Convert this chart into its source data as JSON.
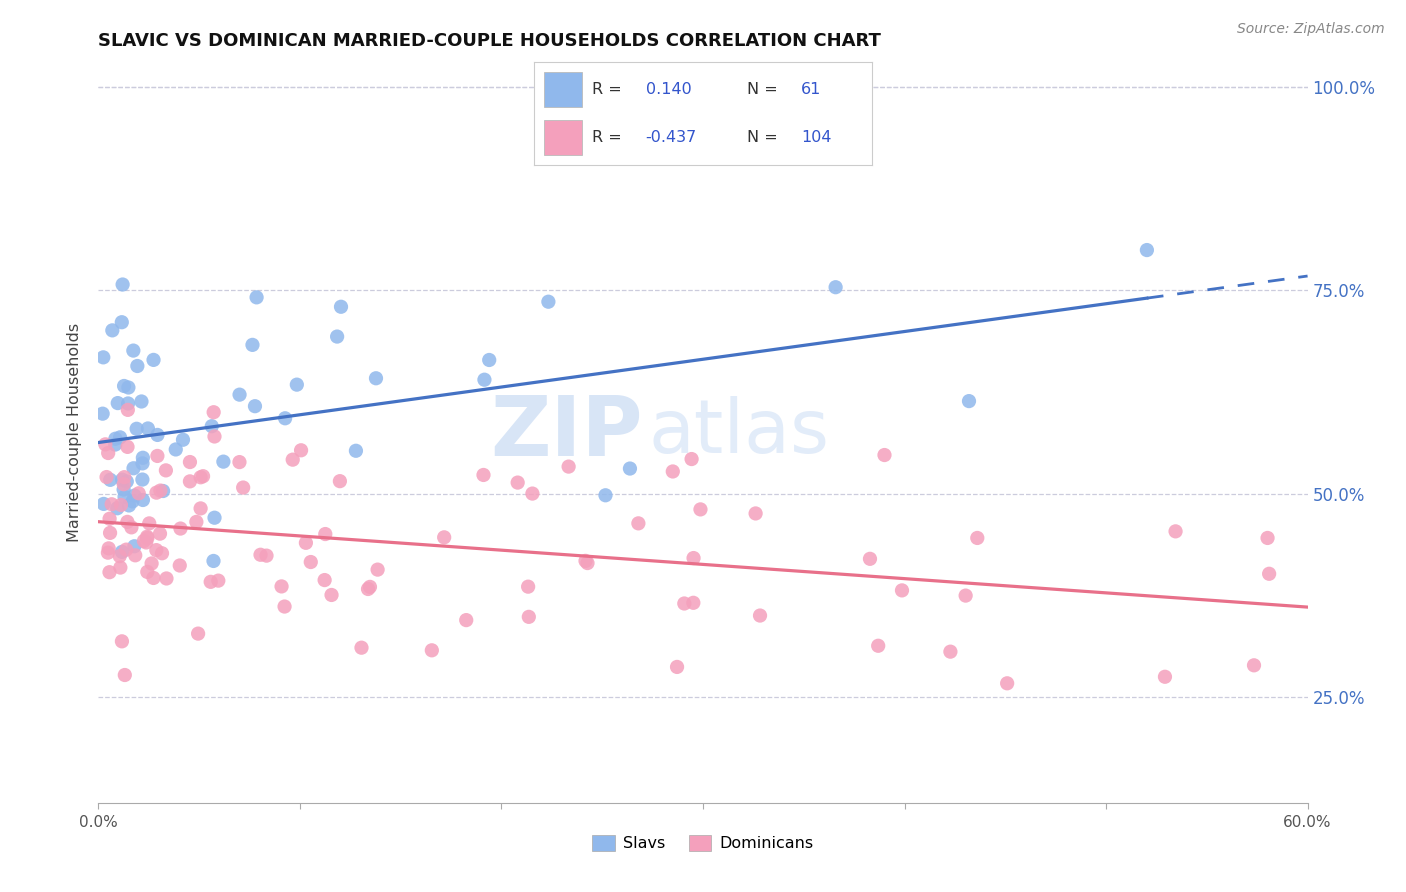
{
  "title": "SLAVIC VS DOMINICAN MARRIED-COUPLE HOUSEHOLDS CORRELATION CHART",
  "source": "Source: ZipAtlas.com",
  "ylabel": "Married-couple Households",
  "ytick_labels": [
    "100.0%",
    "75.0%",
    "50.0%",
    "25.0%"
  ],
  "ytick_values": [
    1.0,
    0.75,
    0.5,
    0.25
  ],
  "xmin": 0.0,
  "xmax": 0.6,
  "ymin": 0.12,
  "ymax": 1.03,
  "slavs_R": 0.14,
  "slavs_N": 61,
  "dominicans_R": -0.437,
  "dominicans_N": 104,
  "slavs_color": "#90b8ec",
  "dominicans_color": "#f4a0bc",
  "slavs_line_color": "#4472c4",
  "dominicans_line_color": "#e8708a",
  "watermark_zip": "ZIP",
  "watermark_atlas": "atlas",
  "legend_slavs_label": "Slavs",
  "legend_dominicans_label": "Dominicans",
  "bg_color": "#ffffff",
  "grid_color": "#ccccdd",
  "right_axis_color": "#4472c4",
  "legend_text_color": "#3355cc",
  "slavs_line_intercept": 0.555,
  "slavs_line_slope": 0.22,
  "dominicans_line_intercept": 0.455,
  "dominicans_line_slope": -0.2
}
